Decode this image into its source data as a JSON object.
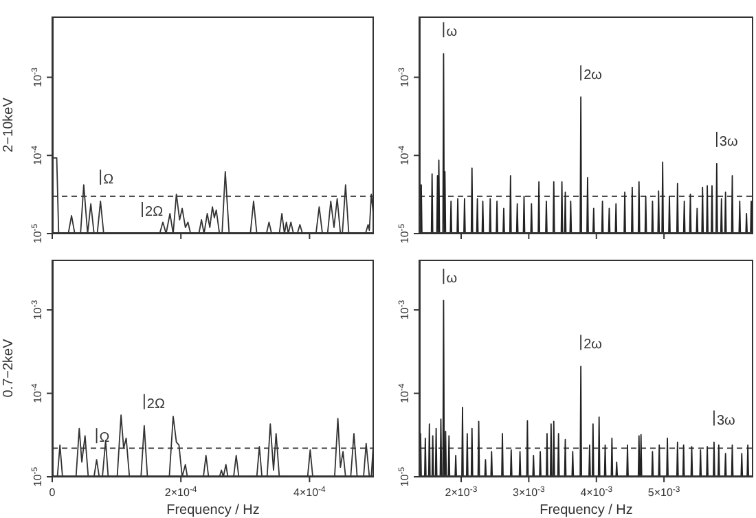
{
  "chart_data": [
    {
      "type": "line",
      "ylabel": "2−10keV",
      "log": true,
      "tick_labels": "y",
      "xlim": [
        0,
        0.0005
      ],
      "xticks": [
        {
          "value": 0,
          "label": null
        },
        {
          "value": 0.0002,
          "label": null
        },
        {
          "value": 0.0004,
          "label": null
        }
      ],
      "ylim": [
        1e-05,
        0.006
      ],
      "yticks": [
        {
          "value": 1e-05,
          "label": "10$^{-5}$"
        },
        {
          "value": 0.0001,
          "label": "10$^{-4}$"
        },
        {
          "value": 0.001,
          "label": "10$^{-3}$"
        }
      ],
      "ref_lines": [
        {
          "axis": "y",
          "value": 3e-05,
          "line_style": "dashed"
        }
      ],
      "annotations": [
        {
          "text": "Ω",
          "x": 7.5e-05,
          "y": 2.6e-05
        },
        {
          "text": "2Ω",
          "x": 0.00014,
          "y": 1e-05
        }
      ],
      "series": [
        {
          "color": "#333333",
          "x": [
            0,
            7e-06,
            1e-05,
            2.5e-05,
            3e-05,
            3.5e-05,
            4.4e-05,
            4.9e-05,
            5.5e-05,
            6e-05,
            6.5e-05,
            7e-05,
            7.5e-05,
            8e-05,
            0.000167,
            0.000172,
            0.000177,
            0.000183,
            0.000188,
            0.000193,
            0.000198,
            0.000202,
            0.000207,
            0.000211,
            0.000215,
            0.000228,
            0.000232,
            0.000236,
            0.000241,
            0.000245,
            0.000249,
            0.000252,
            0.000255,
            0.00026,
            0.000264,
            0.000269,
            0.000275,
            0.000308,
            0.000313,
            0.000318,
            0.000333,
            0.000337,
            0.000341,
            0.000353,
            0.000357,
            0.000361,
            0.000364,
            0.000367,
            0.000371,
            0.000375,
            0.000381,
            0.000385,
            0.000389,
            0.00041,
            0.000415,
            0.00042,
            0.000428,
            0.000433,
            0.000438,
            0.000443,
            0.000448,
            0.000451,
            0.000456,
            0.000461,
            0.000487,
            0.000491,
            0.000493,
            0.000496,
            0.0005
          ],
          "values": [
            9.3e-05,
            9.3e-05,
            1e-05,
            1e-05,
            1.7e-05,
            1e-05,
            1e-05,
            4.2e-05,
            1e-05,
            2.4e-05,
            1e-05,
            1e-05,
            2.6e-05,
            1e-05,
            1e-05,
            1.4e-05,
            1e-05,
            1.8e-05,
            1e-05,
            3.2e-05,
            1.5e-05,
            2.1e-05,
            1.2e-05,
            1.4e-05,
            1e-05,
            1e-05,
            1.5e-05,
            1e-05,
            1.8e-05,
            1.2e-05,
            2.2e-05,
            1.6e-05,
            2e-05,
            1e-05,
            1e-05,
            6.2e-05,
            1e-05,
            1e-05,
            2.6e-05,
            1e-05,
            1e-05,
            1.4e-05,
            1e-05,
            1e-05,
            1.8e-05,
            1e-05,
            1.4e-05,
            1e-05,
            1.4e-05,
            1e-05,
            1e-05,
            1.3e-05,
            1e-05,
            1e-05,
            2.2e-05,
            1e-05,
            1e-05,
            2.6e-05,
            1.2e-05,
            2.8e-05,
            1e-05,
            1e-05,
            4.2e-05,
            1e-05,
            1e-05,
            1.3e-05,
            1.1e-05,
            3.2e-05,
            1.5e-05
          ]
        }
      ]
    },
    {
      "type": "line",
      "log": true,
      "tick_labels": "y",
      "xlim": [
        0.00138,
        0.00632
      ],
      "xticks": [
        {
          "value": 0.002,
          "label": null
        },
        {
          "value": 0.003,
          "label": null
        },
        {
          "value": 0.004,
          "label": null
        },
        {
          "value": 0.005,
          "label": null
        }
      ],
      "ylim": [
        1e-05,
        0.006
      ],
      "yticks": [
        {
          "value": 1e-05,
          "label": "10$^{-5}$"
        },
        {
          "value": 0.0001,
          "label": "10$^{-4}$"
        },
        {
          "value": 0.001,
          "label": "10$^{-3}$"
        }
      ],
      "ref_lines": [
        {
          "axis": "y",
          "value": 3e-05,
          "line_style": "dashed"
        }
      ],
      "annotations": [
        {
          "text": "ω",
          "x": 0.00174,
          "y": 0.002
        },
        {
          "text": "2ω",
          "x": 0.00377,
          "y": 0.00056
        },
        {
          "text": "3ω",
          "x": 0.00578,
          "y": 7.9e-05
        }
      ],
      "series": [
        {
          "color": "#222222",
          "x": [
            0.0014,
            0.00141,
            0.00142,
            0.00156,
            0.00157,
            0.00158,
            0.00164,
            0.00165,
            0.00166,
            0.00166,
            0.00167,
            0.00168,
            0.00173,
            0.00174,
            0.00175,
            0.00175,
            0.00176,
            0.00177,
            0.00184,
            0.00185,
            0.00186,
            0.00194,
            0.00195,
            0.00196,
            0.00204,
            0.00205,
            0.00206,
            0.00215,
            0.00216,
            0.00217,
            0.00223,
            0.00224,
            0.00225,
            0.00231,
            0.00232,
            0.00233,
            0.00242,
            0.00243,
            0.00244,
            0.00252,
            0.00253,
            0.00254,
            0.00262,
            0.00263,
            0.00264,
            0.00272,
            0.00273,
            0.00274,
            0.00282,
            0.00283,
            0.00284,
            0.00292,
            0.00293,
            0.00294,
            0.00303,
            0.00304,
            0.00305,
            0.00314,
            0.00315,
            0.00316,
            0.00325,
            0.00326,
            0.00327,
            0.00336,
            0.00337,
            0.00338,
            0.00348,
            0.00349,
            0.0035,
            0.00353,
            0.00354,
            0.00355,
            0.00361,
            0.00362,
            0.00363,
            0.00376,
            0.00377,
            0.00378,
            0.00386,
            0.00387,
            0.00388,
            0.00395,
            0.00396,
            0.00397,
            0.00408,
            0.00409,
            0.0041,
            0.00418,
            0.00419,
            0.0042,
            0.00428,
            0.00429,
            0.0043,
            0.00441,
            0.00442,
            0.00443,
            0.00452,
            0.00453,
            0.00454,
            0.00462,
            0.00463,
            0.00464,
            0.00472,
            0.00473,
            0.00474,
            0.00482,
            0.00483,
            0.00484,
            0.00491,
            0.00492,
            0.00493,
            0.00497,
            0.00498,
            0.00499,
            0.00507,
            0.00508,
            0.00509,
            0.00519,
            0.0052,
            0.00521,
            0.00529,
            0.0053,
            0.00531,
            0.00538,
            0.00539,
            0.0054,
            0.00548,
            0.00549,
            0.0055,
            0.00556,
            0.00557,
            0.00558,
            0.00563,
            0.00564,
            0.00565,
            0.0057,
            0.00571,
            0.00572,
            0.00577,
            0.00578,
            0.00579,
            0.00584,
            0.00585,
            0.00586,
            0.0059,
            0.00591,
            0.00592,
            0.006,
            0.00601,
            0.00602,
            0.00611,
            0.00612,
            0.00613,
            0.00621,
            0.00622,
            0.00623,
            0.00628,
            0.00629,
            0.0063
          ],
          "values": [
            1e-05,
            4.2e-05,
            1e-05,
            1e-05,
            5.8e-05,
            1e-05,
            1e-05,
            5.5e-05,
            1e-05,
            1e-05,
            8.7e-05,
            1e-05,
            1e-05,
            0.002,
            1e-05,
            1e-05,
            6.2e-05,
            1e-05,
            1e-05,
            2.6e-05,
            1e-05,
            1e-05,
            2.8e-05,
            1e-05,
            1e-05,
            2.8e-05,
            1e-05,
            1e-05,
            6.9e-05,
            1e-05,
            1e-05,
            2.8e-05,
            1e-05,
            1e-05,
            2.6e-05,
            1e-05,
            1e-05,
            2.8e-05,
            1e-05,
            1e-05,
            2.6e-05,
            1e-05,
            1e-05,
            2.1e-05,
            1e-05,
            1e-05,
            5.5e-05,
            1e-05,
            1e-05,
            2.4e-05,
            1e-05,
            1e-05,
            3e-05,
            1e-05,
            1e-05,
            2.4e-05,
            1e-05,
            1e-05,
            4.6e-05,
            1e-05,
            1e-05,
            2.6e-05,
            1e-05,
            1e-05,
            4.6e-05,
            1e-05,
            1e-05,
            4.6e-05,
            1e-05,
            1e-05,
            3.4e-05,
            1e-05,
            1e-05,
            2.6e-05,
            1e-05,
            1e-05,
            0.00056,
            1e-05,
            1e-05,
            5.2e-05,
            1e-05,
            1e-05,
            2.1e-05,
            1e-05,
            1e-05,
            2.6e-05,
            1e-05,
            1e-05,
            2.1e-05,
            1e-05,
            1e-05,
            2.4e-05,
            1e-05,
            1e-05,
            3.4e-05,
            1e-05,
            1e-05,
            3.9e-05,
            1e-05,
            1e-05,
            4.6e-05,
            1e-05,
            1e-05,
            3e-05,
            1e-05,
            1e-05,
            2.6e-05,
            1e-05,
            1e-05,
            3.5e-05,
            1e-05,
            1e-05,
            8.2e-05,
            1e-05,
            1e-05,
            3e-05,
            1e-05,
            1e-05,
            4.4e-05,
            1e-05,
            1e-05,
            2.6e-05,
            1e-05,
            1e-05,
            3.2e-05,
            1e-05,
            1e-05,
            2.1e-05,
            1e-05,
            1e-05,
            3.9e-05,
            1e-05,
            1e-05,
            4.1e-05,
            1e-05,
            1e-05,
            4.1e-05,
            1e-05,
            1e-05,
            7.9e-05,
            1e-05,
            1e-05,
            2.8e-05,
            1e-05,
            1e-05,
            3.4e-05,
            1e-05,
            1e-05,
            5.5e-05,
            1e-05,
            1e-05,
            2.6e-05,
            1e-05,
            1e-05,
            1.8e-05,
            1e-05,
            1e-05,
            2.6e-05,
            1e-05
          ]
        }
      ]
    },
    {
      "type": "line",
      "ylabel": "0.7−2keV",
      "xlabel": "Frequency  /  Hz",
      "log": true,
      "xlim": [
        0,
        0.0005
      ],
      "xticks": [
        0,
        {
          "value": 0.0002,
          "label": "2×10$^{-4}$"
        },
        {
          "value": 0.0004,
          "label": "4×10$^{-4}$"
        }
      ],
      "ylim": [
        1e-05,
        0.004
      ],
      "yticks": [
        {
          "value": 1e-05,
          "label": "10$^{-5}$"
        },
        {
          "value": 0.0001,
          "label": "10$^{-4}$"
        },
        {
          "value": 0.001,
          "label": "10$^{-3}$"
        }
      ],
      "ref_lines": [
        {
          "axis": "y",
          "value": 2.2e-05,
          "line_style": "dashed"
        }
      ],
      "annotations": [
        {
          "text": "Ω",
          "x": 6.9e-05,
          "y": 1.6e-05
        },
        {
          "text": "2Ω",
          "x": 0.000143,
          "y": 4.1e-05
        }
      ],
      "series": [
        {
          "color": "#333333",
          "x": [
            0,
            8e-06,
            1.2e-05,
            1.6e-05,
            3.7e-05,
            4.2e-05,
            4.6e-05,
            5.1e-05,
            5.6e-05,
            6.5e-05,
            6.9e-05,
            7.3e-05,
            7.8e-05,
            8.3e-05,
            8.7e-05,
            0.000101,
            0.000107,
            0.000111,
            0.000115,
            0.00012,
            0.000138,
            0.000143,
            0.000148,
            0.000182,
            0.000188,
            0.000193,
            0.000197,
            0.000202,
            0.000207,
            0.00021,
            0.000235,
            0.000239,
            0.000243,
            0.00026,
            0.000263,
            0.000266,
            0.00027,
            0.000273,
            0.000282,
            0.000286,
            0.00029,
            0.000318,
            0.000322,
            0.000326,
            0.000334,
            0.000339,
            0.000344,
            0.000348,
            0.000353,
            0.000397,
            0.000401,
            0.000405,
            0.000439,
            0.000444,
            0.000448,
            0.000452,
            0.000456,
            0.000464,
            0.000469,
            0.000474,
            0.000484,
            0.000488,
            0.000493,
            0.000496,
            0.000499,
            0.0005
          ],
          "values": [
            1e-05,
            1e-05,
            2.4e-05,
            1e-05,
            1e-05,
            3.8e-05,
            1.5e-05,
            3.1e-05,
            1e-05,
            1e-05,
            1.6e-05,
            1e-05,
            1e-05,
            2.7e-05,
            1e-05,
            1e-05,
            5.5e-05,
            2.2e-05,
            2.9e-05,
            1e-05,
            1e-05,
            4.1e-05,
            1e-05,
            1e-05,
            5.3e-05,
            2.6e-05,
            2.4e-05,
            1e-05,
            1.4e-05,
            1e-05,
            1e-05,
            1.8e-05,
            1e-05,
            1e-05,
            1.2e-05,
            1e-05,
            1.4e-05,
            1e-05,
            1e-05,
            1.8e-05,
            1e-05,
            1e-05,
            2.3e-05,
            1e-05,
            1e-05,
            4.3e-05,
            1.2e-05,
            3.3e-05,
            1e-05,
            1e-05,
            2.1e-05,
            1e-05,
            1e-05,
            5e-05,
            1.3e-05,
            2e-05,
            1e-05,
            1e-05,
            3.3e-05,
            1e-05,
            1e-05,
            2.5e-05,
            1e-05,
            1e-05,
            2.4e-05,
            2e-05
          ]
        }
      ]
    },
    {
      "type": "line",
      "xlabel": "Frequency  /  Hz",
      "log": true,
      "xlim": [
        0.00138,
        0.00632
      ],
      "xticks": [
        {
          "value": 0.002,
          "label": "2×10$^{-3}$"
        },
        {
          "value": 0.003,
          "label": "3×10$^{-3}$"
        },
        {
          "value": 0.004,
          "label": "4×10$^{-3}$"
        },
        {
          "value": 0.005,
          "label": "5×10$^{-3}$"
        }
      ],
      "ylim": [
        1e-05,
        0.004
      ],
      "yticks": [
        {
          "value": 1e-05,
          "label": "10$^{-5}$"
        },
        {
          "value": 0.0001,
          "label": "10$^{-4}$"
        },
        {
          "value": 0.001,
          "label": "10$^{-3}$"
        }
      ],
      "ref_lines": [
        {
          "axis": "y",
          "value": 2.2e-05,
          "line_style": "dashed"
        }
      ],
      "annotations": [
        {
          "text": "ω",
          "x": 0.00174,
          "y": 0.0013
        },
        {
          "text": "2ω",
          "x": 0.00377,
          "y": 0.00021
        },
        {
          "text": "3ω",
          "x": 0.00574,
          "y": 2.6e-05
        }
      ],
      "series": [
        {
          "color": "#222222",
          "x": [
            0.00139,
            0.0014,
            0.00141,
            0.00146,
            0.00147,
            0.00148,
            0.00152,
            0.00153,
            0.00154,
            0.00157,
            0.00158,
            0.00159,
            0.00162,
            0.00163,
            0.00164,
            0.00169,
            0.0017,
            0.00171,
            0.00173,
            0.00174,
            0.00175,
            0.00176,
            0.00177,
            0.00178,
            0.00181,
            0.00182,
            0.00183,
            0.00191,
            0.00192,
            0.00193,
            0.00201,
            0.00202,
            0.00203,
            0.00208,
            0.00209,
            0.0021,
            0.00215,
            0.00216,
            0.00217,
            0.00225,
            0.00226,
            0.00227,
            0.00235,
            0.00236,
            0.00237,
            0.00244,
            0.00245,
            0.00246,
            0.0026,
            0.00261,
            0.00262,
            0.00273,
            0.00274,
            0.00275,
            0.00286,
            0.00287,
            0.00288,
            0.00297,
            0.00298,
            0.00299,
            0.00306,
            0.00307,
            0.00308,
            0.00316,
            0.00317,
            0.00318,
            0.00326,
            0.00327,
            0.00328,
            0.00332,
            0.00333,
            0.00334,
            0.00336,
            0.00337,
            0.00338,
            0.00343,
            0.00344,
            0.00345,
            0.00353,
            0.00354,
            0.00355,
            0.00364,
            0.00365,
            0.00366,
            0.00376,
            0.00377,
            0.00378,
            0.00389,
            0.0039,
            0.00391,
            0.00394,
            0.00395,
            0.00396,
            0.00403,
            0.00404,
            0.00405,
            0.00412,
            0.00413,
            0.00414,
            0.00422,
            0.00423,
            0.00424,
            0.00429,
            0.0043,
            0.00431,
            0.00445,
            0.00446,
            0.00447,
            0.00462,
            0.00463,
            0.00464,
            0.00465,
            0.00466,
            0.00467,
            0.00482,
            0.00483,
            0.00484,
            0.00492,
            0.00493,
            0.00494,
            0.00504,
            0.00505,
            0.00506,
            0.00519,
            0.0052,
            0.00521,
            0.00528,
            0.00529,
            0.0053,
            0.0054,
            0.00541,
            0.00542,
            0.00553,
            0.00554,
            0.00555,
            0.00563,
            0.00564,
            0.00565,
            0.00573,
            0.00574,
            0.00575,
            0.0058,
            0.00581,
            0.00582,
            0.0059,
            0.00591,
            0.00592,
            0.006,
            0.00601,
            0.00602,
            0.00614,
            0.00615,
            0.00616,
            0.00623,
            0.00624,
            0.00625
          ],
          "values": [
            1e-05,
            3.3e-05,
            1e-05,
            1e-05,
            2.9e-05,
            1e-05,
            1e-05,
            4.3e-05,
            1e-05,
            1e-05,
            3.1e-05,
            1e-05,
            1e-05,
            3.8e-05,
            1e-05,
            1e-05,
            4.9e-05,
            1e-05,
            1e-05,
            0.0013,
            1e-05,
            1e-05,
            3.5e-05,
            1e-05,
            1e-05,
            3.1e-05,
            1e-05,
            1e-05,
            1.8e-05,
            1e-05,
            1e-05,
            6.8e-05,
            1e-05,
            1e-05,
            3.3e-05,
            1e-05,
            1e-05,
            3.8e-05,
            1e-05,
            1e-05,
            4.6e-05,
            1e-05,
            1e-05,
            1.6e-05,
            1e-05,
            1e-05,
            2e-05,
            1e-05,
            1e-05,
            3.3e-05,
            1e-05,
            1e-05,
            2.1e-05,
            1e-05,
            1e-05,
            2e-05,
            1e-05,
            1e-05,
            4.7e-05,
            1e-05,
            1e-05,
            1.8e-05,
            1e-05,
            1e-05,
            2e-05,
            1e-05,
            1e-05,
            3.3e-05,
            1e-05,
            1e-05,
            4.3e-05,
            1e-05,
            1e-05,
            4.6e-05,
            1e-05,
            1e-05,
            3.3e-05,
            1e-05,
            1e-05,
            2.8e-05,
            1e-05,
            1e-05,
            2e-05,
            1e-05,
            1e-05,
            0.00021,
            1e-05,
            1e-05,
            2.4e-05,
            1e-05,
            1e-05,
            4.3e-05,
            1e-05,
            1e-05,
            5.2e-05,
            1e-05,
            1e-05,
            2.4e-05,
            1e-05,
            1e-05,
            2.9e-05,
            1e-05,
            1e-05,
            1.5e-05,
            1e-05,
            1e-05,
            2.4e-05,
            1e-05,
            1e-05,
            3.1e-05,
            1e-05,
            1e-05,
            3.2e-05,
            1e-05,
            1e-05,
            2e-05,
            1e-05,
            1e-05,
            2.4e-05,
            1e-05,
            1e-05,
            2.9e-05,
            1e-05,
            1e-05,
            2.6e-05,
            1e-05,
            1e-05,
            2.4e-05,
            1e-05,
            1e-05,
            2.3e-05,
            1e-05,
            1e-05,
            2.1e-05,
            1e-05,
            1e-05,
            2.3e-05,
            1e-05,
            1e-05,
            2.6e-05,
            1e-05,
            1e-05,
            2.4e-05,
            1e-05,
            1e-05,
            1.9e-05,
            1e-05,
            1e-05,
            2.4e-05,
            1e-05,
            1e-05,
            1.9e-05,
            1e-05,
            1e-05,
            2.4e-05,
            1e-05
          ]
        }
      ]
    }
  ]
}
